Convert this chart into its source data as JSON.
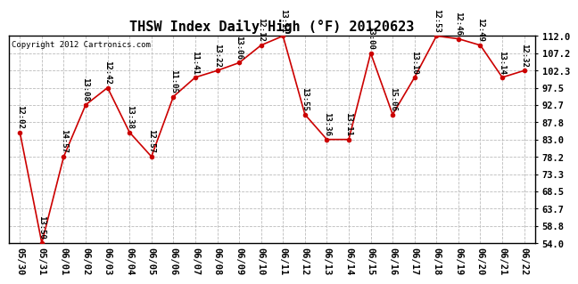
{
  "title": "THSW Index Daily High (°F) 20120623",
  "copyright": "Copyright 2012 Cartronics.com",
  "background_color": "#ffffff",
  "plot_bg_color": "#ffffff",
  "line_color": "#cc0000",
  "marker_color": "#cc0000",
  "grid_color": "#bbbbbb",
  "dates": [
    "05/30",
    "05/31",
    "06/01",
    "06/02",
    "06/03",
    "06/04",
    "06/05",
    "06/06",
    "06/07",
    "06/08",
    "06/09",
    "06/10",
    "06/11",
    "06/12",
    "06/13",
    "06/14",
    "06/15",
    "06/16",
    "06/17",
    "06/18",
    "06/19",
    "06/20",
    "06/21",
    "06/22"
  ],
  "values": [
    85.0,
    54.0,
    78.2,
    92.7,
    97.5,
    85.0,
    78.2,
    95.0,
    100.4,
    102.3,
    104.5,
    109.4,
    112.0,
    90.0,
    83.0,
    83.0,
    107.2,
    90.0,
    100.4,
    112.0,
    111.2,
    109.4,
    100.4,
    102.3
  ],
  "labels": [
    "12:02",
    "13:50",
    "14:57",
    "13:08",
    "12:42",
    "13:38",
    "12:57",
    "11:05",
    "11:41",
    "13:22",
    "13:06",
    "12:12",
    "13:11",
    "13:55",
    "13:36",
    "13:11",
    "13:00",
    "15:06",
    "13:10",
    "12:53",
    "12:46",
    "12:49",
    "13:14",
    "12:32"
  ],
  "ylim": [
    54.0,
    112.0
  ],
  "yticks": [
    54.0,
    58.8,
    63.7,
    68.5,
    73.3,
    78.2,
    83.0,
    87.8,
    92.7,
    97.5,
    102.3,
    107.2,
    112.0
  ],
  "title_fontsize": 11,
  "label_fontsize": 6.5,
  "tick_fontsize": 7.5,
  "copyright_fontsize": 6.5
}
